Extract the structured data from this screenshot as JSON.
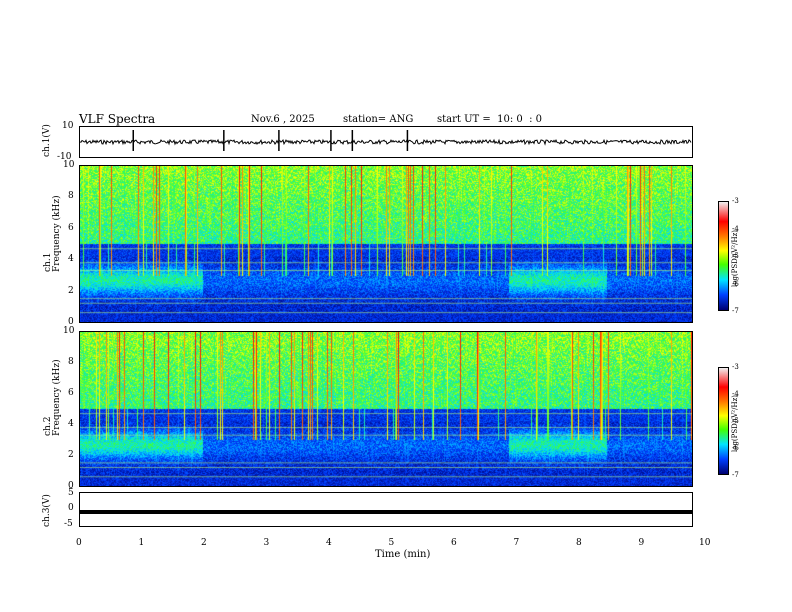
{
  "header": {
    "title": "VLF Spectra",
    "date": "Nov.6 , 2025",
    "station": "station= ANG",
    "start": "start UT =  10: 0  : 0"
  },
  "panels": {
    "ch1_time": {
      "ylabel": "ch.1(V)",
      "ticks": [
        "10",
        "-10"
      ]
    },
    "ch1_spec": {
      "ylabel": "ch.1\nFrequency (kHz)",
      "ticks": [
        "10",
        "8",
        "6",
        "4",
        "2",
        "0"
      ]
    },
    "ch2_spec": {
      "ylabel": "ch.2\nFrequency (kHz)",
      "ticks": [
        "10",
        "8",
        "6",
        "4",
        "2",
        "0"
      ]
    },
    "ch3_time": {
      "ylabel": "ch.3(V)",
      "ticks": [
        "5",
        "0",
        "-5"
      ]
    }
  },
  "colorbar": {
    "ticks": [
      "-3",
      "-4",
      "-5",
      "-6",
      "-7"
    ],
    "label": "log(PSD)(V²/Hz)"
  },
  "xaxis": {
    "label": "Time (min)",
    "ticks": [
      "0",
      "1",
      "2",
      "3",
      "4",
      "5",
      "6",
      "7",
      "8",
      "9",
      "10"
    ]
  },
  "chart_data": [
    {
      "type": "line",
      "title": "ch.1(V)",
      "xlabel": "",
      "ylabel": "ch.1(V)",
      "xlim": [
        0,
        10
      ],
      "ylim": [
        -10,
        10
      ],
      "description_values": {
        "baseline": 0,
        "spikes_at_min": [
          0.87,
          2.35,
          3.25,
          4.1,
          4.45,
          5.35
        ]
      }
    },
    {
      "type": "heatmap",
      "title": "",
      "ylabel": "Frequency (kHz)",
      "xlabel": "",
      "xlim": [
        0,
        10
      ],
      "ylim": [
        0,
        10
      ],
      "colorbar": [
        -7,
        -3
      ]
    },
    {
      "type": "heatmap",
      "title": "",
      "ylabel": "Frequency (kHz)",
      "xlabel": "",
      "xlim": [
        0,
        10
      ],
      "ylim": [
        0,
        10
      ],
      "colorbar": [
        -7,
        -3
      ]
    },
    {
      "type": "line",
      "title": "ch.3(V)",
      "xlabel": "Time (min)",
      "ylabel": "ch.3(V)",
      "xlim": [
        0,
        10
      ],
      "ylim": [
        -5,
        5
      ],
      "values": [
        -2,
        -2
      ]
    }
  ]
}
